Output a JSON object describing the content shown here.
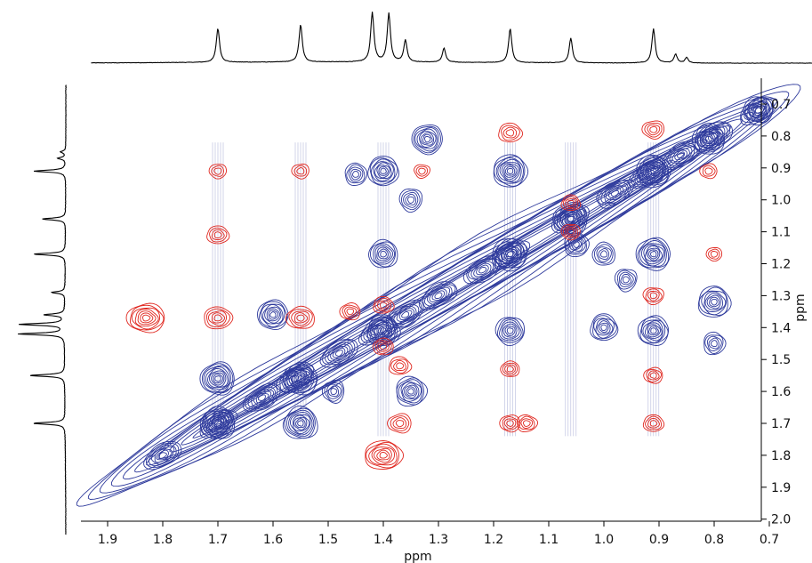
{
  "chart_data": {
    "type": "heatmap",
    "subtype": "2D NMR contour plot with 1D projections",
    "xlabel": "ppm",
    "ylabel": "ppm",
    "x_axis": {
      "reversed": true,
      "range": [
        1.9,
        0.7
      ],
      "tick_labels": [
        "1.9",
        "1.8",
        "1.7",
        "1.6",
        "1.5",
        "1.4",
        "1.3",
        "1.2",
        "1.1",
        "1.0",
        "0.9",
        "0.8",
        "0.7"
      ]
    },
    "y_axis": {
      "position": "right",
      "range": [
        0.7,
        2.0
      ],
      "tick_labels": [
        "0.7",
        "0.8",
        "0.9",
        "1.0",
        "1.1",
        "1.2",
        "1.3",
        "1.4",
        "1.5",
        "1.6",
        "1.7",
        "1.8",
        "1.9",
        "2.0"
      ]
    },
    "grid": false,
    "colors": {
      "positive": "#2e3a9c",
      "negative": "#e0271f",
      "projection": "#000000"
    },
    "projection_peaks_ppm": [
      {
        "x": 1.7,
        "h": 0.62
      },
      {
        "x": 1.55,
        "h": 0.68
      },
      {
        "x": 1.42,
        "h": 0.9
      },
      {
        "x": 1.39,
        "h": 0.88
      },
      {
        "x": 1.36,
        "h": 0.4
      },
      {
        "x": 1.29,
        "h": 0.26
      },
      {
        "x": 1.17,
        "h": 0.62
      },
      {
        "x": 1.06,
        "h": 0.45
      },
      {
        "x": 0.91,
        "h": 0.62
      },
      {
        "x": 0.87,
        "h": 0.16
      },
      {
        "x": 0.85,
        "h": 0.1
      }
    ],
    "diagonal_peaks_ppm": [
      0.72,
      0.8,
      0.86,
      0.92,
      0.98,
      1.06,
      1.17,
      1.22,
      1.3,
      1.36,
      1.41,
      1.48,
      1.56,
      1.62,
      1.7,
      1.8
    ],
    "positive_cross_peaks_ppm": [
      {
        "x": 1.7,
        "y": 1.56,
        "s": 1.0
      },
      {
        "x": 1.55,
        "y": 1.56,
        "s": 1.0
      },
      {
        "x": 1.7,
        "y": 1.7,
        "s": 1.0
      },
      {
        "x": 1.55,
        "y": 1.7,
        "s": 1.0
      },
      {
        "x": 1.6,
        "y": 1.36,
        "s": 0.8
      },
      {
        "x": 1.4,
        "y": 0.91,
        "s": 0.8
      },
      {
        "x": 1.4,
        "y": 1.17,
        "s": 0.7
      },
      {
        "x": 1.4,
        "y": 1.41,
        "s": 0.9
      },
      {
        "x": 1.32,
        "y": 0.81,
        "s": 0.8
      },
      {
        "x": 1.17,
        "y": 0.91,
        "s": 1.0
      },
      {
        "x": 1.17,
        "y": 1.17,
        "s": 1.0
      },
      {
        "x": 1.17,
        "y": 1.41,
        "s": 0.7
      },
      {
        "x": 1.06,
        "y": 1.06,
        "s": 1.0
      },
      {
        "x": 1.0,
        "y": 1.4,
        "s": 0.6
      },
      {
        "x": 0.91,
        "y": 0.91,
        "s": 1.0
      },
      {
        "x": 0.91,
        "y": 1.17,
        "s": 1.0
      },
      {
        "x": 0.91,
        "y": 1.41,
        "s": 0.8
      },
      {
        "x": 0.81,
        "y": 0.81,
        "s": 0.9
      },
      {
        "x": 0.8,
        "y": 1.32,
        "s": 0.9
      },
      {
        "x": 1.35,
        "y": 1.6,
        "s": 0.8
      },
      {
        "x": 1.45,
        "y": 0.92,
        "s": 0.3
      },
      {
        "x": 1.35,
        "y": 1.0,
        "s": 0.35
      },
      {
        "x": 1.05,
        "y": 1.14,
        "s": 0.45
      },
      {
        "x": 1.0,
        "y": 1.17,
        "s": 0.35
      },
      {
        "x": 0.96,
        "y": 1.25,
        "s": 0.3
      },
      {
        "x": 0.8,
        "y": 1.45,
        "s": 0.3
      },
      {
        "x": 1.49,
        "y": 1.6,
        "s": 0.3
      },
      {
        "x": 0.72,
        "y": 0.72,
        "s": 0.7
      }
    ],
    "negative_peaks_ppm": [
      {
        "x": 1.83,
        "y": 1.37,
        "s": 0.9
      },
      {
        "x": 1.7,
        "y": 0.91,
        "s": 0.25
      },
      {
        "x": 1.7,
        "y": 1.11,
        "s": 0.4
      },
      {
        "x": 1.7,
        "y": 1.37,
        "s": 0.6
      },
      {
        "x": 1.55,
        "y": 0.91,
        "s": 0.25
      },
      {
        "x": 1.55,
        "y": 1.37,
        "s": 0.6
      },
      {
        "x": 1.46,
        "y": 1.35,
        "s": 0.35
      },
      {
        "x": 1.4,
        "y": 1.33,
        "s": 0.35
      },
      {
        "x": 1.4,
        "y": 1.46,
        "s": 0.35
      },
      {
        "x": 1.37,
        "y": 1.52,
        "s": 0.4
      },
      {
        "x": 1.33,
        "y": 0.91,
        "s": 0.2
      },
      {
        "x": 1.37,
        "y": 1.7,
        "s": 0.45
      },
      {
        "x": 1.4,
        "y": 1.8,
        "s": 0.9
      },
      {
        "x": 1.17,
        "y": 0.79,
        "s": 0.45
      },
      {
        "x": 1.17,
        "y": 1.53,
        "s": 0.3
      },
      {
        "x": 1.17,
        "y": 1.7,
        "s": 0.35
      },
      {
        "x": 1.14,
        "y": 1.7,
        "s": 0.35
      },
      {
        "x": 1.06,
        "y": 1.01,
        "s": 0.3
      },
      {
        "x": 1.06,
        "y": 1.1,
        "s": 0.3
      },
      {
        "x": 0.91,
        "y": 0.78,
        "s": 0.4
      },
      {
        "x": 0.91,
        "y": 1.3,
        "s": 0.35
      },
      {
        "x": 0.91,
        "y": 1.55,
        "s": 0.3
      },
      {
        "x": 0.91,
        "y": 1.7,
        "s": 0.35
      },
      {
        "x": 0.81,
        "y": 0.91,
        "s": 0.25
      },
      {
        "x": 0.8,
        "y": 1.17,
        "s": 0.2
      }
    ]
  }
}
